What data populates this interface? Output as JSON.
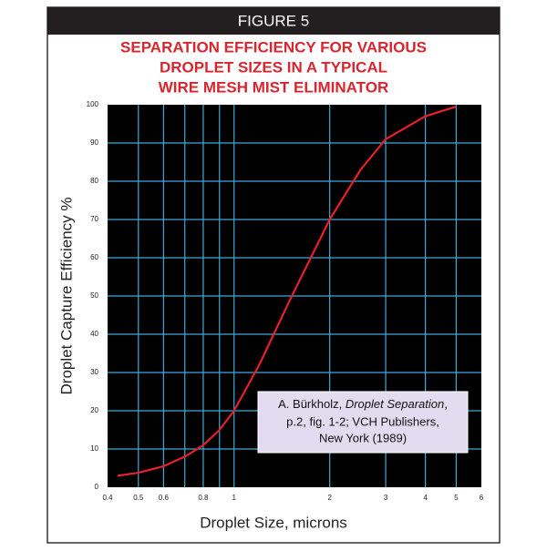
{
  "chart_data": {
    "type": "line",
    "header": "FIGURE 5",
    "title": [
      "SEPARATION EFFICIENCY FOR VARIOUS",
      "DROPLET SIZES IN A TYPICAL",
      "WIRE MESH MIST ELIMINATOR"
    ],
    "x_label": "Droplet Size, microns",
    "y_label": "Droplet Capture Efficiency  %",
    "xscale": "log",
    "xlim": [
      0.4,
      6
    ],
    "ylim": [
      0,
      100
    ],
    "xticks": [
      0.4,
      0.5,
      0.6,
      0.8,
      1,
      2,
      3,
      4,
      5,
      6
    ],
    "xgrid": [
      0.5,
      0.6,
      0.7,
      0.8,
      0.9,
      1,
      2,
      3,
      4,
      5
    ],
    "yticks": [
      0,
      10,
      20,
      30,
      40,
      50,
      60,
      70,
      80,
      90,
      100
    ],
    "grid": true,
    "grid_color": "#3fa9d9",
    "background": "#000000",
    "series": [
      {
        "color": "#e8202a",
        "x": [
          0.43,
          0.5,
          0.6,
          0.7,
          0.8,
          0.9,
          1,
          1.2,
          1.5,
          2,
          2.5,
          3,
          4,
          5
        ],
        "values": [
          3,
          3.8,
          5.5,
          8,
          11,
          15,
          20,
          32,
          49,
          70,
          83,
          91,
          97,
          99.5
        ]
      }
    ],
    "annotation": {
      "author": "A. Bürkholz, ",
      "book": "Droplet Separation",
      "lines": [
        ",",
        "p.2, fig. 1-2; VCH Publishers,",
        "New York (1989)"
      ]
    }
  }
}
